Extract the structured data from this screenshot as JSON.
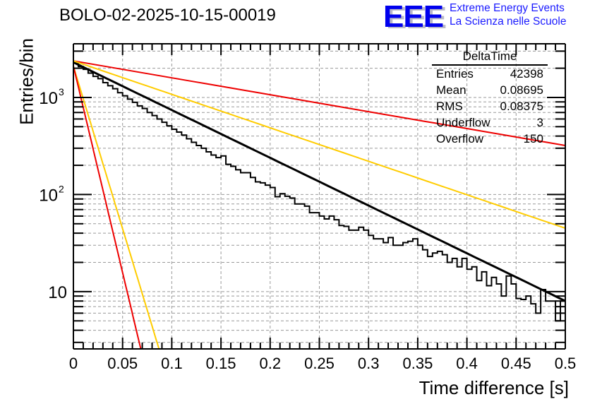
{
  "header": {
    "run_title": "BOLO-02-2025-10-15-00019",
    "logo_text": "EEE",
    "logo_line1": "Extreme Energy Events",
    "logo_line2": "La Scienza nelle Scuole"
  },
  "stats_box": {
    "title": "DeltaTime",
    "rows": [
      {
        "label": "Entries",
        "value": "42398"
      },
      {
        "label": "Mean",
        "value": "0.08695"
      },
      {
        "label": "RMS",
        "value": "0.08375"
      },
      {
        "label": "Underflow",
        "value": "3"
      },
      {
        "label": "Overflow",
        "value": "150"
      }
    ]
  },
  "chart_data": {
    "type": "line",
    "title": "BOLO-02-2025-10-15-00019",
    "xlabel": "Time difference [s]",
    "ylabel": "Entries/bin",
    "xlim": [
      0,
      0.5
    ],
    "ylim": [
      2.57,
      3570
    ],
    "yscale": "log",
    "grid": true,
    "x_ticks": [
      "0",
      "0.05",
      "0.1",
      "0.15",
      "0.2",
      "0.25",
      "0.3",
      "0.35",
      "0.4",
      "0.45",
      "0.5"
    ],
    "x_tick_values": [
      0,
      0.05,
      0.1,
      0.15,
      0.2,
      0.25,
      0.3,
      0.35,
      0.4,
      0.45,
      0.5
    ],
    "y_ticks": [
      {
        "value": 10,
        "label": "10",
        "exp": ""
      },
      {
        "value": 100,
        "label": "10",
        "exp": "2"
      },
      {
        "value": 1000,
        "label": "10",
        "exp": "3"
      }
    ],
    "colors": {
      "histogram": "#000000",
      "fit": "#000000",
      "red": "#ee0000",
      "yellow": "#ffcc00",
      "grid": "#999999"
    },
    "histogram": {
      "name": "DeltaTime",
      "bin_width": 0.005,
      "x_start": 0,
      "counts": [
        2280,
        2080,
        1950,
        1780,
        1650,
        1560,
        1420,
        1320,
        1230,
        1120,
        1040,
        960,
        890,
        820,
        770,
        700,
        650,
        600,
        555,
        510,
        470,
        440,
        410,
        375,
        345,
        320,
        300,
        275,
        255,
        240,
        250,
        205,
        195,
        180,
        168,
        168,
        150,
        135,
        132,
        125,
        118,
        95,
        102,
        96,
        92,
        80,
        80,
        76,
        65,
        65,
        60,
        56,
        60,
        55,
        48,
        47,
        43,
        43,
        46,
        43,
        38,
        35,
        35,
        32,
        36,
        30,
        30,
        32,
        33,
        35,
        30,
        27,
        23,
        25,
        26,
        24,
        20,
        22,
        18,
        22,
        17,
        18,
        13,
        16,
        11.5,
        14,
        12,
        9,
        14.5,
        12,
        8.5,
        8.3,
        9,
        7.5,
        6,
        10.5,
        8,
        8,
        5,
        8
      ]
    },
    "series": [
      {
        "name": "fit",
        "color": "#000000",
        "width": 3,
        "type": "exponential",
        "x0": 0,
        "y0": 2300,
        "x1": 0.5,
        "y1": 8
      },
      {
        "name": "red-upper",
        "color": "#ee0000",
        "width": 2,
        "type": "exponential",
        "x0": 0,
        "y0": 2380,
        "x1": 0.5,
        "y1": 320
      },
      {
        "name": "yellow-upper",
        "color": "#ffcc00",
        "width": 2,
        "type": "exponential",
        "x0": 0,
        "y0": 2380,
        "x1": 0.5,
        "y1": 45
      },
      {
        "name": "yellow-lower",
        "color": "#ffcc00",
        "width": 2,
        "type": "exponential",
        "x0": 0,
        "y0": 2100,
        "x1": 0.087,
        "y1": 2.57
      },
      {
        "name": "red-lower",
        "color": "#ee0000",
        "width": 2,
        "type": "exponential",
        "x0": 0,
        "y0": 2100,
        "x1": 0.0685,
        "y1": 2.57
      }
    ]
  }
}
